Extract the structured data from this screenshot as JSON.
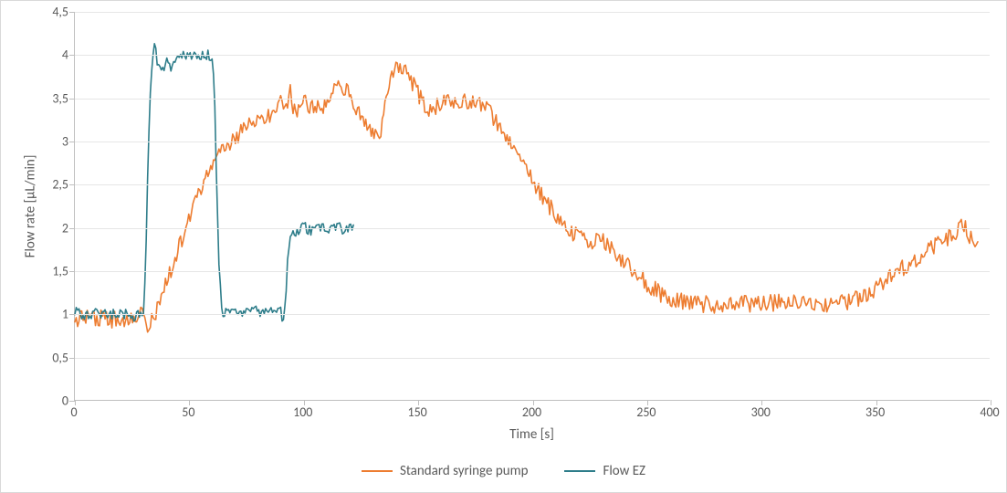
{
  "chart": {
    "type": "line",
    "background_color": "#ffffff",
    "frame_border_color": "#d9d9d9",
    "axis_line_color": "#bfbfbf",
    "grid_color": "#e6e6e6",
    "axis_label_color": "#595959",
    "axis_fontsize_pt": 11,
    "tick_fontsize_pt": 10,
    "xlim": [
      0,
      400
    ],
    "ylim": [
      0,
      4.5
    ],
    "xticks": [
      0,
      50,
      100,
      150,
      200,
      250,
      300,
      350,
      400
    ],
    "xtick_labels": [
      "0",
      "50",
      "100",
      "150",
      "200",
      "250",
      "300",
      "350",
      "400"
    ],
    "yticks": [
      0,
      0.5,
      1,
      1.5,
      2,
      2.5,
      3,
      3.5,
      4,
      4.5
    ],
    "ytick_labels": [
      "0",
      "0,5",
      "1",
      "1,5",
      "2",
      "2,5",
      "3",
      "3,5",
      "4",
      "4,5"
    ],
    "xlabel": "Time [s]",
    "ylabel": "Flow rate [µL/min]",
    "line_width": 1.6,
    "noise": {
      "syringe_amp": 0.1,
      "flowez_amp": 0.06,
      "step_x": 0.6
    },
    "series": [
      {
        "id": "syringe",
        "label": "Standard syringe pump",
        "color": "#ed7d31",
        "x_range": [
          0,
          395
        ],
        "knots": [
          [
            0,
            0.95
          ],
          [
            10,
            0.95
          ],
          [
            20,
            0.92
          ],
          [
            28,
            1.0
          ],
          [
            30,
            0.95
          ],
          [
            32,
            0.86
          ],
          [
            36,
            1.05
          ],
          [
            40,
            1.35
          ],
          [
            50,
            2.1
          ],
          [
            55,
            2.45
          ],
          [
            60,
            2.7
          ],
          [
            65,
            2.9
          ],
          [
            70,
            3.05
          ],
          [
            75,
            3.15
          ],
          [
            78,
            3.25
          ],
          [
            85,
            3.3
          ],
          [
            90,
            3.45
          ],
          [
            93,
            3.35
          ],
          [
            94,
            3.8
          ],
          [
            95,
            3.3
          ],
          [
            100,
            3.45
          ],
          [
            105,
            3.35
          ],
          [
            110,
            3.45
          ],
          [
            115,
            3.7
          ],
          [
            120,
            3.55
          ],
          [
            125,
            3.3
          ],
          [
            130,
            3.1
          ],
          [
            133,
            3.0
          ],
          [
            136,
            3.5
          ],
          [
            140,
            3.88
          ],
          [
            145,
            3.8
          ],
          [
            150,
            3.55
          ],
          [
            155,
            3.35
          ],
          [
            160,
            3.45
          ],
          [
            165,
            3.45
          ],
          [
            170,
            3.45
          ],
          [
            175,
            3.45
          ],
          [
            180,
            3.4
          ],
          [
            185,
            3.2
          ],
          [
            190,
            3.0
          ],
          [
            195,
            2.8
          ],
          [
            200,
            2.55
          ],
          [
            205,
            2.35
          ],
          [
            210,
            2.15
          ],
          [
            215,
            2.0
          ],
          [
            220,
            1.88
          ],
          [
            225,
            1.85
          ],
          [
            230,
            1.85
          ],
          [
            235,
            1.75
          ],
          [
            240,
            1.6
          ],
          [
            245,
            1.5
          ],
          [
            250,
            1.35
          ],
          [
            255,
            1.25
          ],
          [
            260,
            1.18
          ],
          [
            270,
            1.12
          ],
          [
            280,
            1.1
          ],
          [
            290,
            1.12
          ],
          [
            300,
            1.1
          ],
          [
            310,
            1.15
          ],
          [
            320,
            1.1
          ],
          [
            330,
            1.12
          ],
          [
            340,
            1.15
          ],
          [
            345,
            1.2
          ],
          [
            350,
            1.3
          ],
          [
            355,
            1.4
          ],
          [
            360,
            1.5
          ],
          [
            365,
            1.58
          ],
          [
            370,
            1.68
          ],
          [
            375,
            1.78
          ],
          [
            380,
            1.85
          ],
          [
            385,
            1.9
          ],
          [
            388,
            2.05
          ],
          [
            392,
            1.85
          ],
          [
            395,
            1.85
          ]
        ]
      },
      {
        "id": "flowez",
        "label": "Flow EZ",
        "color": "#2e7d8a",
        "x_range": [
          0,
          122
        ],
        "knots": [
          [
            0,
            1.02
          ],
          [
            5,
            0.98
          ],
          [
            10,
            1.02
          ],
          [
            15,
            0.98
          ],
          [
            20,
            1.02
          ],
          [
            25,
            0.96
          ],
          [
            28,
            0.98
          ],
          [
            30,
            1.0
          ],
          [
            31,
            1.6
          ],
          [
            32,
            2.8
          ],
          [
            33,
            3.6
          ],
          [
            34,
            3.95
          ],
          [
            35,
            4.22
          ],
          [
            36,
            3.92
          ],
          [
            38,
            3.8
          ],
          [
            40,
            3.95
          ],
          [
            42,
            3.86
          ],
          [
            44,
            3.98
          ],
          [
            47,
            4.02
          ],
          [
            50,
            3.97
          ],
          [
            53,
            4.01
          ],
          [
            56,
            3.99
          ],
          [
            58,
            4.01
          ],
          [
            60,
            3.98
          ],
          [
            61,
            3.6
          ],
          [
            62,
            2.5
          ],
          [
            63,
            1.6
          ],
          [
            64,
            1.1
          ],
          [
            65,
            0.96
          ],
          [
            67,
            1.05
          ],
          [
            70,
            1.02
          ],
          [
            74,
            1.0
          ],
          [
            78,
            1.05
          ],
          [
            82,
            1.02
          ],
          [
            86,
            1.05
          ],
          [
            88,
            1.0
          ],
          [
            90,
            1.02
          ],
          [
            91,
            0.88
          ],
          [
            92,
            1.1
          ],
          [
            93,
            1.6
          ],
          [
            94,
            1.85
          ],
          [
            95,
            2.0
          ],
          [
            97,
            1.92
          ],
          [
            100,
            2.02
          ],
          [
            103,
            1.96
          ],
          [
            106,
            2.02
          ],
          [
            110,
            1.98
          ],
          [
            114,
            2.02
          ],
          [
            117,
            1.98
          ],
          [
            120,
            2.0
          ],
          [
            122,
            2.02
          ]
        ]
      }
    ],
    "legend": {
      "position": "bottom-center",
      "items": [
        {
          "label": "Standard syringe pump",
          "color": "#ed7d31"
        },
        {
          "label": "Flow EZ",
          "color": "#2e7d8a"
        }
      ]
    }
  }
}
